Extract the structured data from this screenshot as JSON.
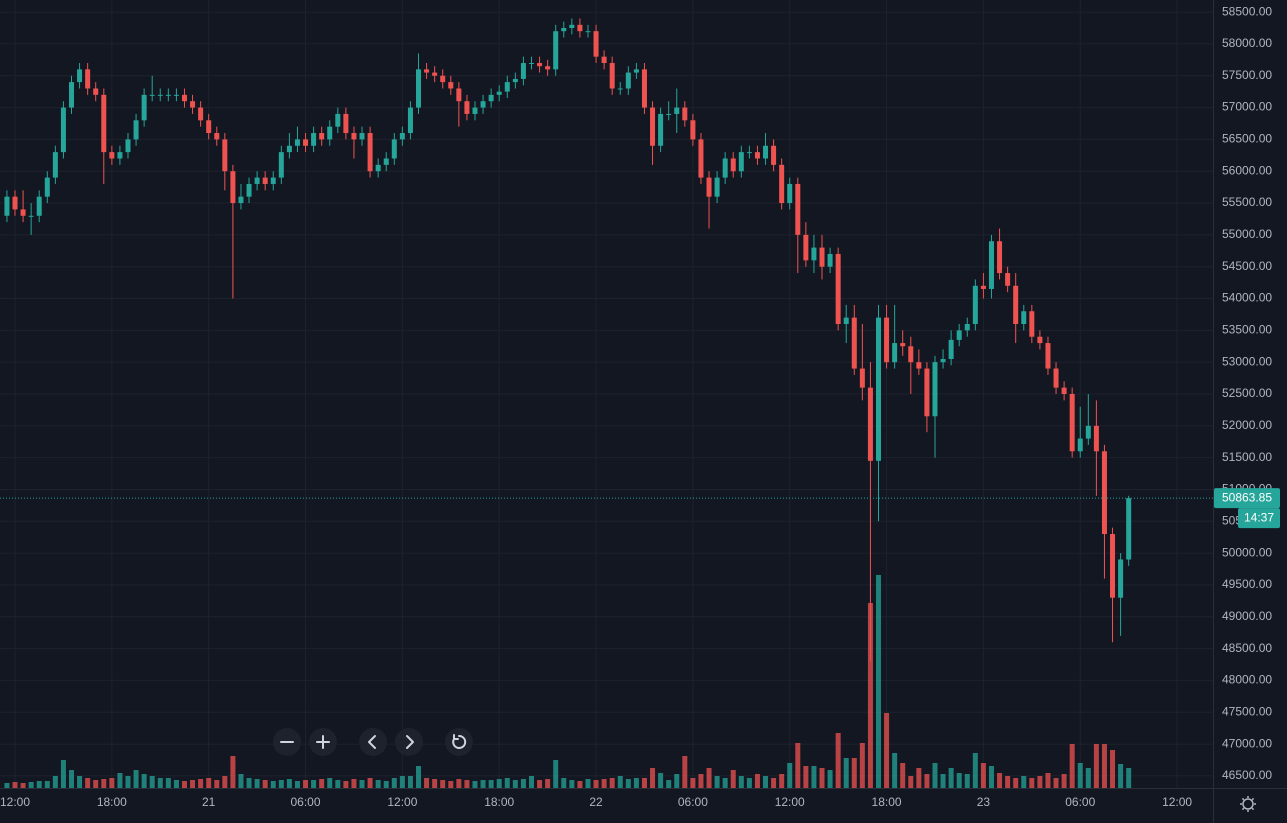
{
  "chart_data": {
    "type": "candlestick",
    "up_color": "#26a69a",
    "down_color": "#ef5350",
    "grid": true,
    "price_line": true,
    "countdown": "14:37",
    "ylim": [
      46310,
      58690
    ],
    "yticks": [
      {
        "value": 46500,
        "label": "46500.00"
      },
      {
        "value": 47000,
        "label": "47000.00"
      },
      {
        "value": 47500,
        "label": "47500.00"
      },
      {
        "value": 48000,
        "label": "48000.00"
      },
      {
        "value": 48500,
        "label": "48500.00"
      },
      {
        "value": 49000,
        "label": "49000.00"
      },
      {
        "value": 49500,
        "label": "49500.00"
      },
      {
        "value": 50000,
        "label": "50000.00"
      },
      {
        "value": 50500,
        "label": "50500.00"
      },
      {
        "value": 51000,
        "label": "51000.00"
      },
      {
        "value": 51500,
        "label": "51500.00"
      },
      {
        "value": 52000,
        "label": "52000.00"
      },
      {
        "value": 52500,
        "label": "52500.00"
      },
      {
        "value": 53000,
        "label": "53000.00"
      },
      {
        "value": 53500,
        "label": "53500.00"
      },
      {
        "value": 54000,
        "label": "54000.00"
      },
      {
        "value": 54500,
        "label": "54500.00"
      },
      {
        "value": 55000,
        "label": "55000.00"
      },
      {
        "value": 55500,
        "label": "55500.00"
      },
      {
        "value": 56000,
        "label": "56000.00"
      },
      {
        "value": 56500,
        "label": "56500.00"
      },
      {
        "value": 57000,
        "label": "57000.00"
      },
      {
        "value": 57500,
        "label": "57500.00"
      },
      {
        "value": 58000,
        "label": "58000.00"
      },
      {
        "value": 58500,
        "label": "58500.00"
      }
    ],
    "xlim": [
      -0.86,
      149.45
    ],
    "xticks": [
      {
        "value": 1,
        "label": "12:00"
      },
      {
        "value": 13,
        "label": "18:00"
      },
      {
        "value": 25,
        "label": "21"
      },
      {
        "value": 37,
        "label": "06:00"
      },
      {
        "value": 49,
        "label": "12:00"
      },
      {
        "value": 61,
        "label": "18:00"
      },
      {
        "value": 73,
        "label": "22"
      },
      {
        "value": 85,
        "label": "06:00"
      },
      {
        "value": 97,
        "label": "12:00"
      },
      {
        "value": 109,
        "label": "18:00"
      },
      {
        "value": 121,
        "label": "23"
      },
      {
        "value": 133,
        "label": "06:00"
      },
      {
        "value": 145,
        "label": "12:00"
      }
    ],
    "open": [
      55300,
      55600,
      55400,
      55300,
      55300,
      55600,
      55900,
      56300,
      57000,
      57400,
      57600,
      57300,
      57200,
      56300,
      56200,
      56300,
      56500,
      56800,
      57200,
      57200,
      57200,
      57200,
      57200,
      57100,
      57000,
      56800,
      56600,
      56500,
      56000,
      55500,
      55600,
      55800,
      55900,
      55800,
      55900,
      56300,
      56400,
      56500,
      56400,
      56600,
      56500,
      56700,
      56900,
      56600,
      56500,
      56600,
      56000,
      56100,
      56200,
      56500,
      56600,
      57000,
      57600,
      57550,
      57500,
      57400,
      57300,
      57100,
      56900,
      57000,
      57100,
      57200,
      57250,
      57400,
      57450,
      57700,
      57700,
      57650,
      57600,
      58200,
      58250,
      58300,
      58200,
      58200,
      57800,
      57700,
      57300,
      57300,
      57550,
      57600,
      57000,
      56400,
      56900,
      56900,
      57000,
      56800,
      56500,
      55900,
      55600,
      55900,
      56200,
      56000,
      56300,
      56300,
      56200,
      56400,
      56100,
      55500,
      55800,
      55000,
      54600,
      54800,
      54500,
      54700,
      53600,
      53700,
      52900,
      52600,
      51450,
      53700,
      53000,
      53300,
      53250,
      53000,
      52900,
      52150,
      53000,
      53050,
      53350,
      53500,
      53600,
      54200,
      54150,
      54900,
      54400,
      54200,
      53600,
      53800,
      53400,
      53300,
      52900,
      52600,
      52500,
      51600,
      51800,
      52000,
      51600,
      50300,
      49300,
      49900
    ],
    "high": [
      55700,
      55700,
      55700,
      55500,
      55700,
      56000,
      56400,
      57100,
      57500,
      57700,
      57700,
      57400,
      57300,
      56400,
      56400,
      56600,
      56900,
      57300,
      57500,
      57300,
      57300,
      57300,
      57300,
      57200,
      57100,
      56900,
      56700,
      56600,
      56100,
      55800,
      55900,
      56000,
      56000,
      56000,
      56400,
      56600,
      56700,
      56600,
      56700,
      56700,
      56800,
      57000,
      57000,
      56700,
      56700,
      56700,
      56200,
      56300,
      56600,
      56700,
      57100,
      57850,
      57700,
      57650,
      57600,
      57500,
      57400,
      57200,
      57100,
      57200,
      57300,
      57350,
      57500,
      57550,
      57800,
      57800,
      57800,
      57750,
      58300,
      58350,
      58400,
      58400,
      58300,
      58300,
      57900,
      57800,
      57400,
      57650,
      57700,
      57700,
      57100,
      57000,
      57100,
      57300,
      57100,
      56900,
      56600,
      56000,
      56000,
      56300,
      56300,
      56400,
      56400,
      56400,
      56600,
      56500,
      56200,
      55900,
      55900,
      55200,
      55000,
      55000,
      54800,
      54800,
      53900,
      53900,
      53600,
      53000,
      53900,
      53900,
      53900,
      53500,
      53400,
      53200,
      53000,
      53100,
      53200,
      53500,
      53600,
      53700,
      54300,
      54400,
      55000,
      55100,
      54500,
      54400,
      53900,
      53900,
      53500,
      53400,
      53000,
      52700,
      52600,
      52300,
      52500,
      52400,
      51700,
      50400,
      50000,
      50900
    ],
    "low": [
      55200,
      55300,
      55200,
      55000,
      55200,
      55500,
      55800,
      56200,
      56900,
      57300,
      57200,
      57100,
      55800,
      56100,
      56100,
      56200,
      56400,
      56700,
      57100,
      57100,
      57100,
      57100,
      57000,
      56900,
      56700,
      56500,
      56400,
      55700,
      54000,
      55400,
      55500,
      55700,
      55700,
      55700,
      55800,
      56200,
      56300,
      56300,
      56300,
      56400,
      56400,
      56600,
      56500,
      56200,
      56400,
      55900,
      55900,
      56000,
      56100,
      56400,
      56500,
      56900,
      57450,
      57400,
      57300,
      57200,
      56700,
      56800,
      56800,
      56900,
      57000,
      57100,
      57150,
      57300,
      57350,
      57600,
      57550,
      57500,
      57500,
      58100,
      58150,
      58100,
      58100,
      57700,
      57600,
      57200,
      57200,
      57200,
      57450,
      56900,
      56100,
      56300,
      56800,
      56600,
      56700,
      56400,
      55800,
      55100,
      55500,
      55800,
      55900,
      55900,
      56200,
      56100,
      56100,
      56000,
      55400,
      55400,
      54400,
      54500,
      54400,
      54300,
      54400,
      53500,
      53300,
      52800,
      52400,
      48300,
      50500,
      52900,
      52900,
      53100,
      52500,
      52800,
      51900,
      51500,
      52900,
      52950,
      53250,
      53400,
      53500,
      54000,
      54000,
      54300,
      54100,
      53300,
      53500,
      53300,
      53200,
      52800,
      52500,
      52400,
      51500,
      51500,
      51700,
      50900,
      49600,
      48600,
      48700,
      49800
    ],
    "close": [
      55600,
      55400,
      55300,
      55300,
      55600,
      55900,
      56300,
      57000,
      57400,
      57600,
      57300,
      57200,
      56300,
      56200,
      56300,
      56500,
      56800,
      57200,
      57200,
      57200,
      57200,
      57200,
      57100,
      57000,
      56800,
      56600,
      56500,
      56000,
      55500,
      55600,
      55800,
      55900,
      55800,
      55900,
      56300,
      56400,
      56500,
      56400,
      56600,
      56500,
      56700,
      56900,
      56600,
      56500,
      56600,
      56000,
      56100,
      56200,
      56500,
      56600,
      57000,
      57600,
      57550,
      57500,
      57400,
      57300,
      57100,
      56900,
      57000,
      57100,
      57200,
      57250,
      57400,
      57450,
      57700,
      57700,
      57650,
      57600,
      58200,
      58250,
      58300,
      58200,
      58200,
      57800,
      57700,
      57300,
      57300,
      57550,
      57600,
      57000,
      56400,
      56900,
      56900,
      57000,
      56800,
      56500,
      55900,
      55600,
      55900,
      56200,
      56000,
      56300,
      56300,
      56200,
      56400,
      56100,
      55500,
      55800,
      55000,
      54600,
      54800,
      54500,
      54700,
      53600,
      53700,
      52900,
      52600,
      51450,
      53700,
      53000,
      53300,
      53250,
      53000,
      52900,
      52150,
      53000,
      53050,
      53350,
      53500,
      53600,
      54200,
      54150,
      54900,
      54400,
      54200,
      53600,
      53800,
      53400,
      53300,
      52900,
      52600,
      52500,
      51600,
      51800,
      52000,
      51600,
      50300,
      49300,
      49900,
      50863.85
    ],
    "volume": [
      5,
      6,
      5,
      6,
      7,
      7,
      12,
      28,
      18,
      12,
      10,
      8,
      9,
      10,
      15,
      12,
      18,
      14,
      12,
      10,
      10,
      8,
      7,
      8,
      9,
      10,
      8,
      12,
      32,
      14,
      10,
      9,
      8,
      7,
      8,
      9,
      7,
      8,
      8,
      9,
      10,
      8,
      7,
      9,
      8,
      10,
      8,
      7,
      10,
      12,
      12,
      22,
      10,
      9,
      8,
      7,
      9,
      8,
      7,
      8,
      8,
      9,
      10,
      8,
      9,
      12,
      8,
      9,
      28,
      10,
      8,
      7,
      9,
      8,
      9,
      10,
      12,
      9,
      10,
      10,
      20,
      15,
      8,
      14,
      32,
      10,
      14,
      20,
      12,
      10,
      18,
      12,
      10,
      14,
      12,
      10,
      14,
      25,
      45,
      22,
      22,
      20,
      18,
      55,
      30,
      30,
      45,
      185,
      213,
      75,
      35,
      25,
      12,
      20,
      14,
      25,
      14,
      20,
      15,
      14,
      35,
      25,
      22,
      15,
      12,
      10,
      12,
      10,
      12,
      15,
      10,
      14,
      44,
      25,
      20,
      44,
      44,
      38,
      24,
      20
    ]
  }
}
